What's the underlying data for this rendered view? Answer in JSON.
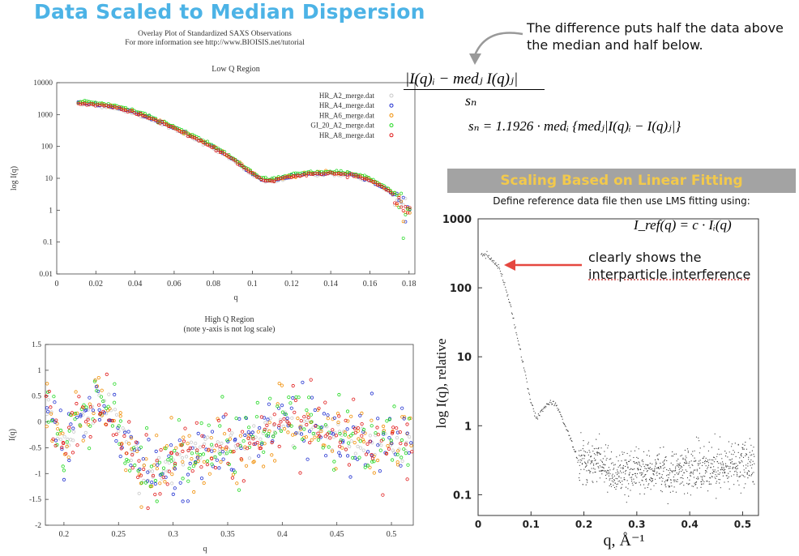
{
  "slide_title": "Data Scaled to Median Dispersion",
  "figure_subtitle_1": "Overlay Plot of Standardized SAXS Observations",
  "figure_subtitle_2": "For more information see http://www.BIOISIS.net/tutorial",
  "callout": "The difference puts half the data above the median and half below.",
  "equation_numerator": "|I(q)ᵢ − medⱼ I(q)ⱼ|",
  "equation_denominator": "sₙ",
  "equation_sn": "sₙ = 1.1926 · medᵢ {medⱼ|I(q)ᵢ − I(q)ⱼ|}",
  "banner": "Scaling Based on Linear Fitting",
  "lms_caption": "Define reference data file then use LMS fitting using:",
  "equation_iref": "I_ref(q) = c · Iᵢ(q)",
  "annotation_line1": "clearly shows the",
  "annotation_line2": "interparticle interference",
  "colors": {
    "title": "#4cb3e6",
    "banner_bg": "#a3a3a3",
    "banner_text": "#f2c94c",
    "arrow": "#e5473f",
    "callout_arrow": "#999999"
  },
  "chart_data": [
    {
      "type": "scatter",
      "title": "Low Q Region",
      "xlabel": "q",
      "ylabel": "log I(q)",
      "log_y": true,
      "xlim": [
        0,
        0.183
      ],
      "ylim": [
        0.01,
        10000
      ],
      "xticks": [
        "0",
        "0.02",
        "0.04",
        "0.06",
        "0.08",
        "0.1",
        "0.12",
        "0.14",
        "0.16",
        "0.18"
      ],
      "yticks": [
        "0.01",
        "0.1",
        "1",
        "10",
        "100",
        "1000",
        "10000"
      ],
      "legend_position": "top-right",
      "series": [
        {
          "name": "HR_A2_merge.dat",
          "color": "#c8c8c8"
        },
        {
          "name": "HR_A4_merge.dat",
          "color": "#1f2fd0"
        },
        {
          "name": "HR_A6_merge.dat",
          "color": "#f08c00"
        },
        {
          "name": "GI_20_A2_merge.dat",
          "color": "#1ed81e"
        },
        {
          "name": "HR_A8_merge.dat",
          "color": "#e01818"
        }
      ],
      "curve_q": [
        0.011,
        0.02,
        0.03,
        0.04,
        0.05,
        0.06,
        0.07,
        0.08,
        0.09,
        0.1,
        0.105,
        0.11,
        0.115,
        0.12,
        0.13,
        0.14,
        0.15,
        0.16,
        0.17,
        0.175,
        0.18
      ],
      "curve_I": [
        2300,
        2150,
        1700,
        1150,
        700,
        380,
        190,
        95,
        40,
        14,
        9,
        8.5,
        10,
        12,
        14,
        14.5,
        13.5,
        9,
        4,
        2,
        0.9
      ]
    },
    {
      "type": "scatter",
      "title": "High Q Region",
      "subtitle": "(note y-axis is not log scale)",
      "xlabel": "q",
      "ylabel": "I(q)",
      "log_y": false,
      "xlim": [
        0.183,
        0.52
      ],
      "ylim": [
        -2,
        1.5
      ],
      "xticks": [
        "0.2",
        "0.25",
        "0.3",
        "0.35",
        "0.4",
        "0.45",
        "0.5"
      ],
      "yticks": [
        "-2",
        "-1.5",
        "-1",
        "-0.5",
        "0",
        "0.5",
        "1",
        "1.5"
      ],
      "trend_q": [
        0.185,
        0.2,
        0.215,
        0.23,
        0.245,
        0.26,
        0.275,
        0.29,
        0.31,
        0.34,
        0.37,
        0.4,
        0.43,
        0.46,
        0.49,
        0.52
      ],
      "trend_I": [
        0.3,
        -0.5,
        0.0,
        0.4,
        0.2,
        -0.6,
        -1.0,
        -0.9,
        -0.7,
        -0.5,
        -0.4,
        0.0,
        -0.1,
        -0.3,
        -0.4,
        -0.4
      ]
    },
    {
      "type": "scatter",
      "title": "",
      "xlabel": "q, Å⁻¹",
      "ylabel": "log I(q), relative",
      "log_y": true,
      "xlim": [
        0,
        0.53
      ],
      "ylim": [
        0.05,
        1000
      ],
      "xticks": [
        "0",
        "0.1",
        "0.2",
        "0.3",
        "0.4",
        "0.5"
      ],
      "yticks": [
        "0.1",
        "1",
        "10",
        "100",
        "1000"
      ],
      "curve_q": [
        0.005,
        0.02,
        0.04,
        0.06,
        0.08,
        0.1,
        0.11,
        0.12,
        0.13,
        0.14,
        0.15,
        0.17,
        0.19,
        0.21,
        0.23,
        0.26,
        0.3,
        0.35,
        0.4,
        0.45,
        0.5,
        0.52
      ],
      "curve_I": [
        310,
        290,
        200,
        60,
        12,
        2.2,
        1.3,
        1.6,
        2.1,
        2.2,
        1.9,
        0.8,
        0.3,
        0.3,
        0.32,
        0.18,
        0.22,
        0.22,
        0.24,
        0.26,
        0.28,
        0.28
      ]
    }
  ]
}
